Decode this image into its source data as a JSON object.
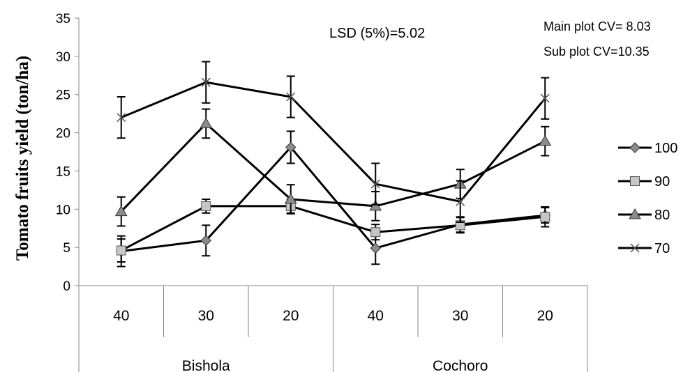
{
  "chart_data": {
    "type": "line",
    "ylabel": "Tomato fruits yield (ton/ha)",
    "ylim": [
      0,
      35
    ],
    "yticks": [
      0,
      5,
      10,
      15,
      20,
      25,
      30,
      35
    ],
    "categories": [
      "40",
      "30",
      "20",
      "40",
      "30",
      "20"
    ],
    "groups": [
      {
        "label": "Bishola",
        "span": [
          0,
          2
        ]
      },
      {
        "label": "Cochoro",
        "span": [
          3,
          5
        ]
      }
    ],
    "annotations": {
      "lsd": "LSD (5%)=5.02",
      "main_cv": "Main plot CV= 8.03",
      "sub_cv": "Sub plot CV=10.35"
    },
    "legend_position": "right",
    "grid": false,
    "series": [
      {
        "name": "100",
        "marker": "diamond",
        "values": [
          4.5,
          5.9,
          18.1,
          4.9,
          8.0,
          9.2
        ],
        "errors": [
          2.0,
          2.0,
          2.1,
          2.1,
          1.0,
          1.0
        ]
      },
      {
        "name": "90",
        "marker": "square",
        "values": [
          4.6,
          10.4,
          10.4,
          7.0,
          7.9,
          9.0
        ],
        "errors": [
          1.5,
          0.9,
          0.9,
          1.0,
          1.0,
          1.3
        ]
      },
      {
        "name": "80",
        "marker": "triangle",
        "values": [
          9.7,
          21.2,
          11.3,
          10.4,
          13.3,
          18.9
        ],
        "errors": [
          1.9,
          1.9,
          1.9,
          1.9,
          1.9,
          1.9
        ]
      },
      {
        "name": "70",
        "marker": "x",
        "values": [
          22.0,
          26.6,
          24.7,
          13.3,
          11.0,
          24.5
        ],
        "errors": [
          2.7,
          2.7,
          2.7,
          2.7,
          2.7,
          2.7
        ]
      }
    ],
    "colors": {
      "line": "#000000",
      "marker_fill": "#8c8c8c",
      "square_fill": "#c6c6c6",
      "axis": "#868686",
      "text": "#000000"
    }
  }
}
